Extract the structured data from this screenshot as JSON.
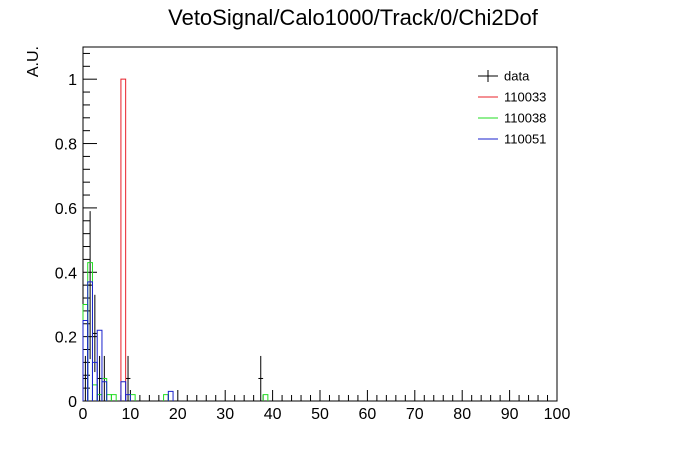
{
  "chart_data": {
    "type": "histogram",
    "title": "VetoSignal/Calo1000/Track/0/Chi2Dof",
    "xlabel": "",
    "ylabel": "A.U.",
    "xlim": [
      0,
      100
    ],
    "ylim": [
      0,
      1.1
    ],
    "bin_width": 1,
    "x_ticks": [
      0,
      10,
      20,
      30,
      40,
      50,
      60,
      70,
      80,
      90,
      100
    ],
    "x_tick_labels": [
      "0",
      "10",
      "20",
      "30",
      "40",
      "50",
      "60",
      "70",
      "80",
      "90",
      "100"
    ],
    "y_ticks": [
      0,
      0.2,
      0.4,
      0.6,
      0.8,
      1
    ],
    "y_tick_labels": [
      "0",
      "0.2",
      "0.4",
      "0.6",
      "0.8",
      "1"
    ],
    "grid": false,
    "legend_position": "top-right",
    "series": [
      {
        "name": "data",
        "color": "#000000",
        "style": "points-with-errors",
        "points": [
          {
            "x": 0.5,
            "y": 0.07,
            "err": 0.07
          },
          {
            "x": 1.5,
            "y": 0.36,
            "err": 0.23
          },
          {
            "x": 2.5,
            "y": 0.21,
            "err": 0.12
          },
          {
            "x": 3.5,
            "y": 0.07,
            "err": 0.07
          },
          {
            "x": 4.5,
            "y": 0.07,
            "err": 0.07
          },
          {
            "x": 9.5,
            "y": 0.07,
            "err": 0.07
          },
          {
            "x": 37.5,
            "y": 0.07,
            "err": 0.07
          }
        ]
      },
      {
        "name": "110033",
        "color": "#e8202a",
        "style": "hist",
        "bins": [
          {
            "x0": 8,
            "x1": 9,
            "y": 1.0
          }
        ]
      },
      {
        "name": "110038",
        "color": "#22dd22",
        "style": "hist",
        "bins": [
          {
            "x0": 0,
            "x1": 1,
            "y": 0.3
          },
          {
            "x0": 1,
            "x1": 2,
            "y": 0.43
          },
          {
            "x0": 2,
            "x1": 3,
            "y": 0.05
          },
          {
            "x0": 3,
            "x1": 4,
            "y": 0.02
          },
          {
            "x0": 4,
            "x1": 5,
            "y": 0.07
          },
          {
            "x0": 5,
            "x1": 6,
            "y": 0.02
          },
          {
            "x0": 6,
            "x1": 7,
            "y": 0.02
          },
          {
            "x0": 10,
            "x1": 11,
            "y": 0.02
          },
          {
            "x0": 17,
            "x1": 18,
            "y": 0.02
          },
          {
            "x0": 38,
            "x1": 39,
            "y": 0.02
          }
        ]
      },
      {
        "name": "110051",
        "color": "#1a22cc",
        "style": "hist",
        "bins": [
          {
            "x0": 0,
            "x1": 1,
            "y": 0.25
          },
          {
            "x0": 1,
            "x1": 2,
            "y": 0.37
          },
          {
            "x0": 2,
            "x1": 3,
            "y": 0.12
          },
          {
            "x0": 3,
            "x1": 4,
            "y": 0.22
          },
          {
            "x0": 4,
            "x1": 5,
            "y": 0.06
          },
          {
            "x0": 8,
            "x1": 9,
            "y": 0.06
          },
          {
            "x0": 9,
            "x1": 10,
            "y": 0.02
          },
          {
            "x0": 18,
            "x1": 19,
            "y": 0.03
          }
        ]
      }
    ]
  }
}
